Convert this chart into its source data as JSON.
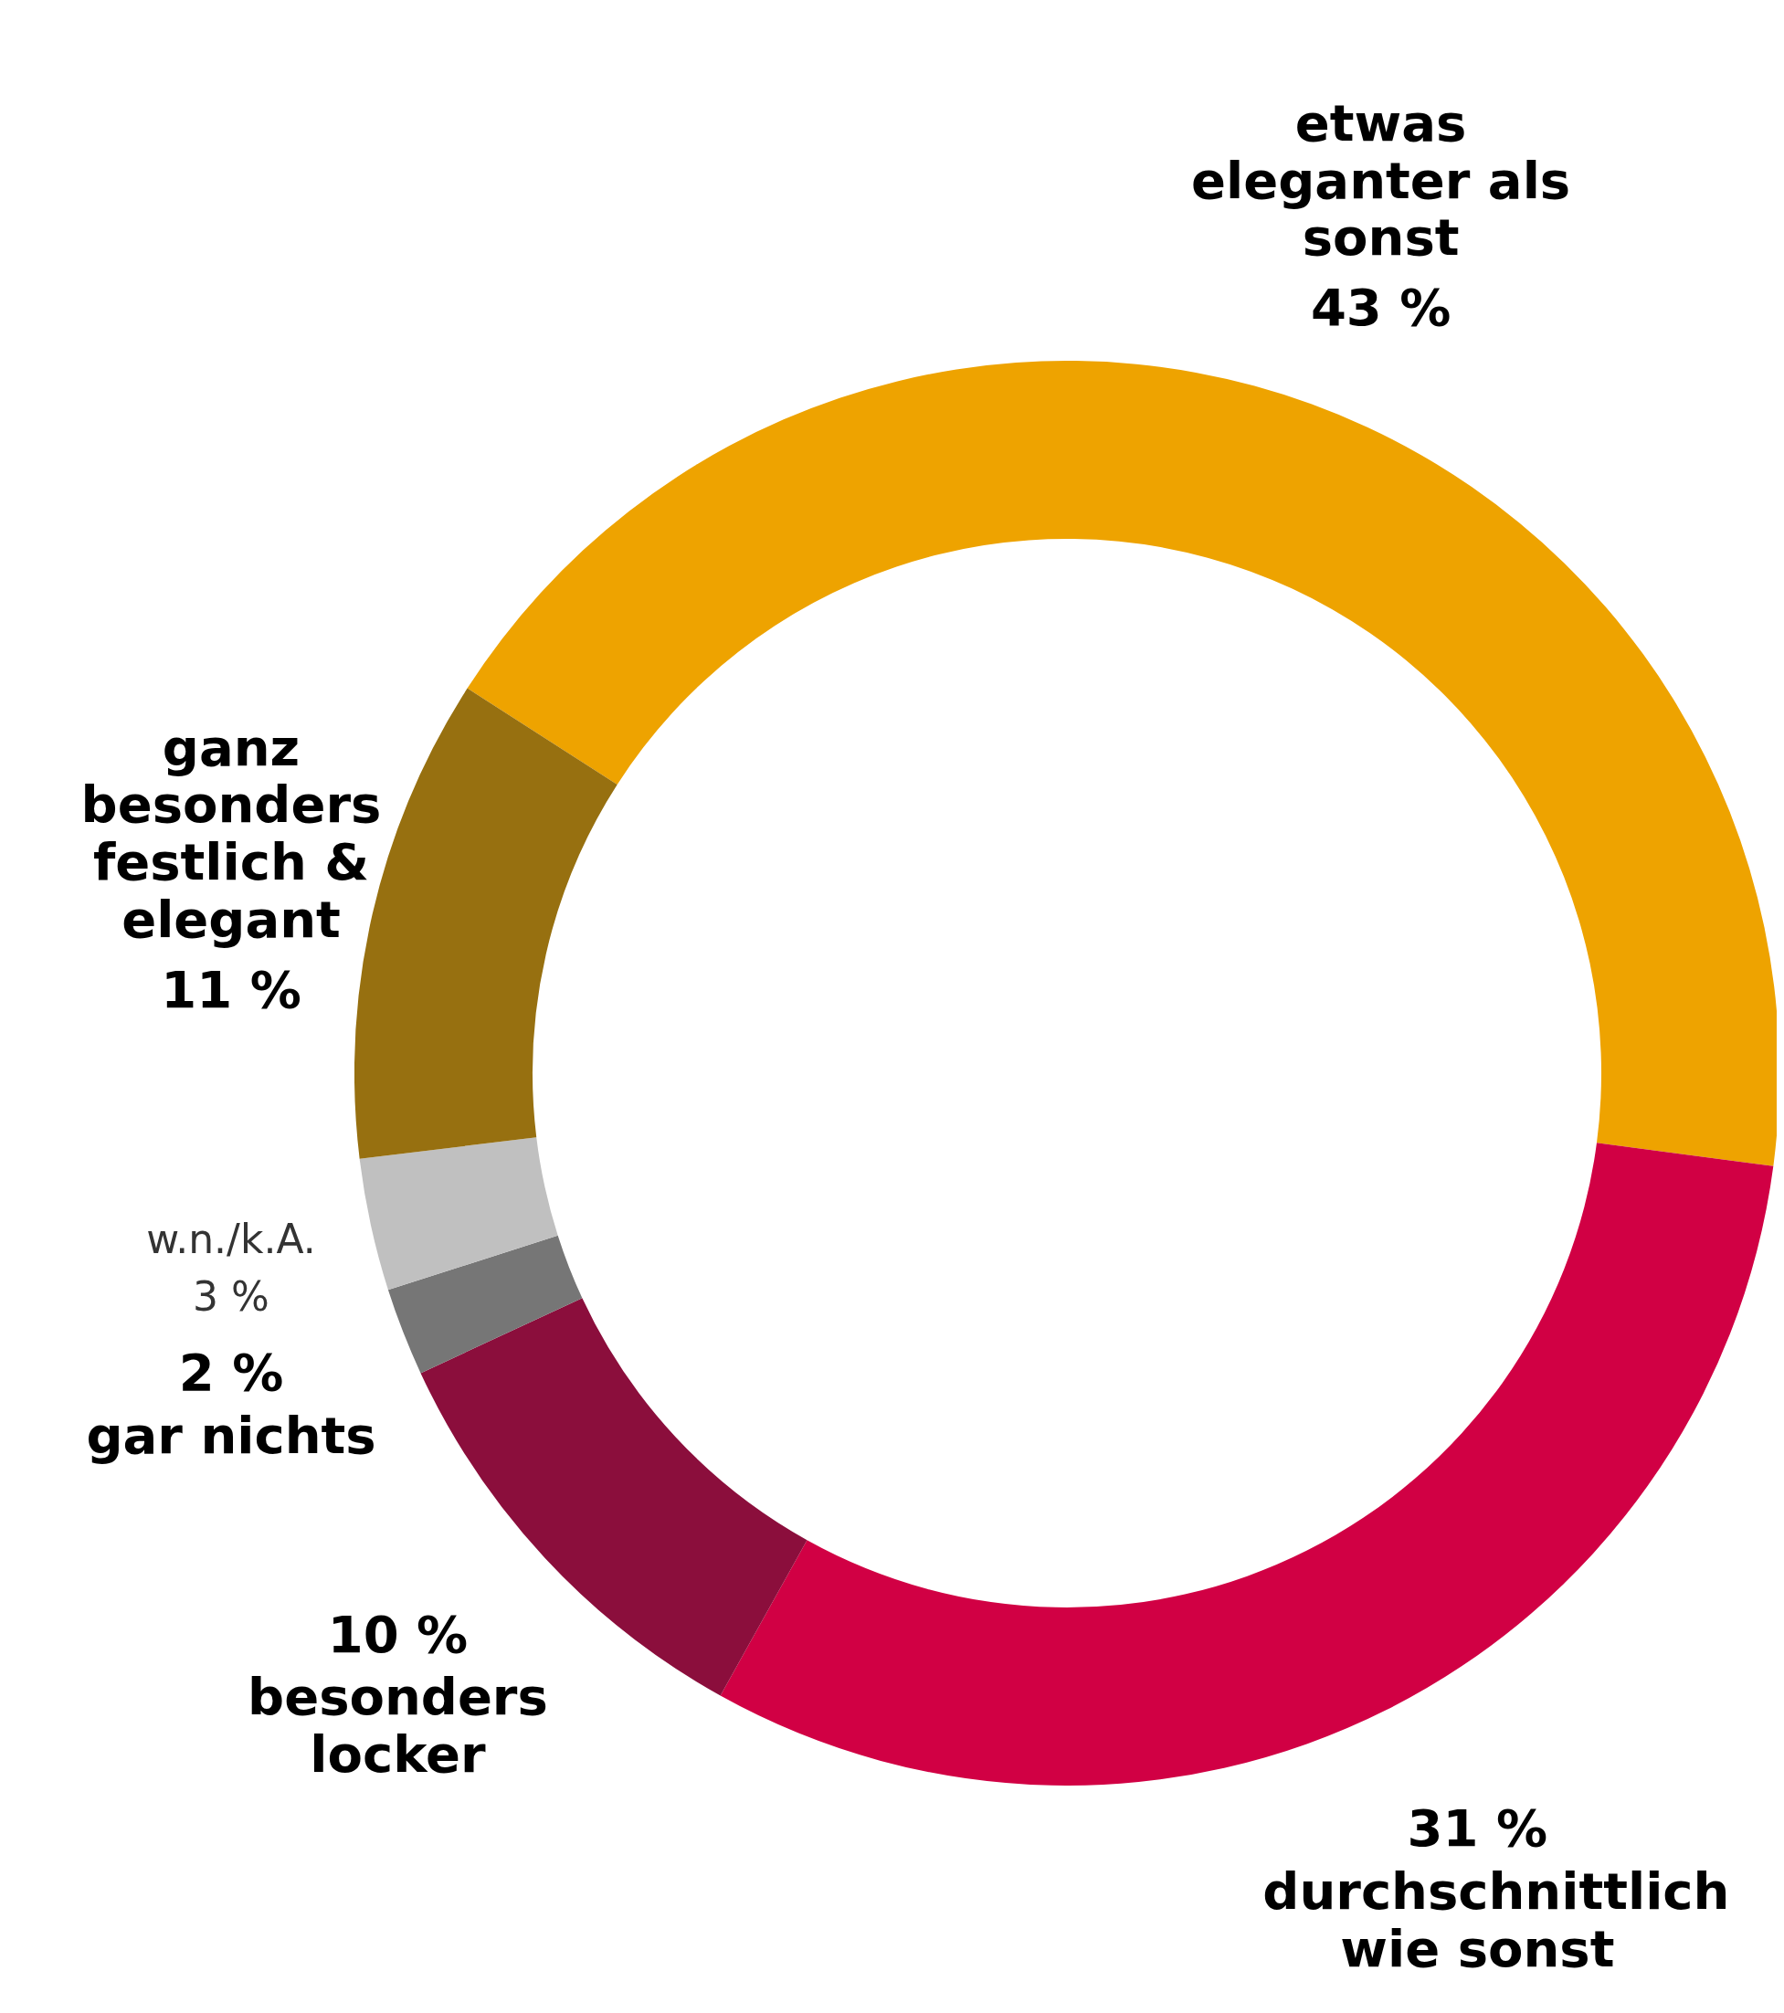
{
  "chart_data": {
    "type": "donut",
    "categories": [
      "etwas eleganter als sonst",
      "durchschnittlich wie sonst",
      "besonders locker",
      "gar nichts",
      "w.n./k.A.",
      "ganz besonders festlich & elegant"
    ],
    "values": [
      43,
      31,
      10,
      2,
      3,
      11
    ],
    "colors": [
      "#eea300",
      "#d10044",
      "#8b0e3c",
      "#767676",
      "#c0c0c0",
      "#977010"
    ],
    "value_labels": [
      "43 %",
      "31 %",
      "10 %",
      "2 %",
      "3 %",
      "11 %"
    ]
  }
}
